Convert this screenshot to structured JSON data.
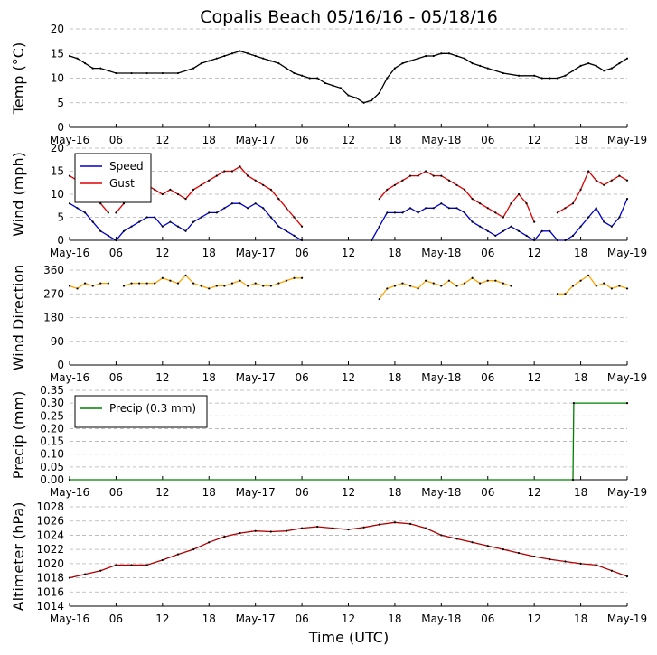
{
  "figure": {
    "title": "Copalis Beach 05/16/16 - 05/18/16",
    "xlabel": "Time (UTC)",
    "colors": {
      "temp": "#000000",
      "speed": "#0000cc",
      "gust": "#dd0000",
      "direction": "#ffa500",
      "precip": "#008000",
      "altimeter": "#b00000"
    }
  },
  "chart_data": [
    {
      "type": "line",
      "ylabel": "Temp (°C)",
      "ylim": [
        0,
        20
      ],
      "yticks": [
        0,
        5,
        10,
        15,
        20
      ],
      "xlim": [
        0,
        72
      ],
      "xtick_positions": [
        0,
        6,
        12,
        18,
        24,
        30,
        36,
        42,
        48,
        54,
        60,
        66,
        72
      ],
      "xtick_labels": [
        "May-16",
        "06",
        "12",
        "18",
        "May-17",
        "06",
        "12",
        "18",
        "May-18",
        "06",
        "12",
        "18",
        "May-19"
      ],
      "grid": true,
      "series": [
        {
          "values_x": [
            0,
            1,
            2,
            3,
            4,
            5,
            6,
            8,
            10,
            12,
            14,
            16,
            17,
            18,
            19,
            20,
            21,
            22,
            23,
            24,
            25,
            26,
            27,
            28,
            29,
            30,
            31,
            32,
            33,
            34,
            35,
            36,
            37,
            38,
            39,
            40,
            41,
            42,
            43,
            44,
            45,
            46,
            47,
            48,
            49,
            50,
            51,
            52,
            53,
            54,
            56,
            58,
            60,
            61,
            62,
            63,
            64,
            65,
            66,
            67,
            68,
            69,
            70,
            71,
            72
          ],
          "values": [
            14.5,
            14,
            13,
            12,
            12,
            11.5,
            11,
            11,
            11,
            11,
            11,
            12,
            13,
            13.5,
            14,
            14.5,
            15,
            15.5,
            15,
            14.5,
            14,
            13.5,
            13,
            12,
            11,
            10.5,
            10,
            10,
            9,
            8.5,
            8,
            6.5,
            6,
            5,
            5.5,
            7,
            10,
            12,
            13,
            13.5,
            14,
            14.5,
            14.5,
            15,
            15,
            14.5,
            14,
            13,
            12.5,
            12,
            11,
            10.5,
            10.5,
            10,
            10,
            10,
            10.5,
            11.5,
            12.5,
            13,
            12.5,
            11.5,
            12,
            13,
            14
          ]
        }
      ]
    },
    {
      "type": "line",
      "ylabel": "Wind (mph)",
      "ylim": [
        0,
        20
      ],
      "yticks": [
        0,
        5,
        10,
        15,
        20
      ],
      "xlim": [
        0,
        72
      ],
      "xtick_positions": [
        0,
        6,
        12,
        18,
        24,
        30,
        36,
        42,
        48,
        54,
        60,
        66,
        72
      ],
      "xtick_labels": [
        "May-16",
        "06",
        "12",
        "18",
        "May-17",
        "06",
        "12",
        "18",
        "May-18",
        "06",
        "12",
        "18",
        "May-19"
      ],
      "grid": true,
      "legend": "top-left",
      "series": [
        {
          "name": "Speed",
          "values_x": [
            0,
            1,
            2,
            3,
            4,
            5,
            6,
            7,
            8,
            9,
            10,
            11,
            12,
            13,
            14,
            15,
            16,
            17,
            18,
            19,
            20,
            21,
            22,
            23,
            24,
            25,
            26,
            27,
            28,
            29,
            30,
            null,
            39,
            40,
            41,
            42,
            43,
            44,
            45,
            46,
            47,
            48,
            49,
            50,
            51,
            52,
            53,
            54,
            55,
            56,
            57,
            58,
            59,
            60,
            61,
            62,
            63,
            64,
            65,
            66,
            67,
            68,
            69,
            70,
            71,
            72
          ],
          "values": [
            8,
            7,
            6,
            4,
            2,
            1,
            0,
            2,
            3,
            4,
            5,
            5,
            3,
            4,
            3,
            2,
            4,
            5,
            6,
            6,
            7,
            8,
            8,
            7,
            8,
            7,
            5,
            3,
            2,
            1,
            0,
            null,
            0,
            3,
            6,
            6,
            6,
            7,
            6,
            7,
            7,
            8,
            7,
            7,
            6,
            4,
            3,
            2,
            1,
            2,
            3,
            2,
            1,
            0,
            2,
            2,
            0,
            0,
            1,
            3,
            5,
            7,
            4,
            3,
            5,
            9
          ]
        },
        {
          "name": "Gust",
          "values_x": [
            0,
            1,
            2,
            3,
            4,
            5,
            null,
            6,
            7,
            8,
            9,
            10,
            11,
            12,
            13,
            14,
            15,
            16,
            17,
            18,
            19,
            20,
            21,
            22,
            23,
            24,
            25,
            26,
            27,
            28,
            29,
            30,
            null,
            40,
            41,
            42,
            43,
            44,
            45,
            46,
            47,
            48,
            49,
            50,
            51,
            52,
            53,
            54,
            55,
            56,
            57,
            58,
            59,
            60,
            null,
            63,
            64,
            65,
            66,
            67,
            68,
            69,
            70,
            71,
            72
          ],
          "values": [
            14,
            13,
            12,
            10,
            8,
            6,
            null,
            6,
            8,
            10,
            11,
            12,
            11,
            10,
            11,
            10,
            9,
            11,
            12,
            13,
            14,
            15,
            15,
            16,
            14,
            13,
            12,
            11,
            9,
            7,
            5,
            3,
            null,
            9,
            11,
            12,
            13,
            14,
            14,
            15,
            14,
            14,
            13,
            12,
            11,
            9,
            8,
            7,
            6,
            5,
            8,
            10,
            8,
            4,
            null,
            6,
            7,
            8,
            11,
            15,
            13,
            12,
            13,
            14,
            13
          ]
        }
      ]
    },
    {
      "type": "line",
      "ylabel": "Wind Direction",
      "ylim": [
        0,
        360
      ],
      "yticks": [
        0,
        90,
        180,
        270,
        360
      ],
      "xlim": [
        0,
        72
      ],
      "xtick_positions": [
        0,
        6,
        12,
        18,
        24,
        30,
        36,
        42,
        48,
        54,
        60,
        66,
        72
      ],
      "xtick_labels": [
        "May-16",
        "06",
        "12",
        "18",
        "May-17",
        "06",
        "12",
        "18",
        "May-18",
        "06",
        "12",
        "18",
        "May-19"
      ],
      "grid": true,
      "series": [
        {
          "values_x": [
            0,
            1,
            2,
            3,
            4,
            5,
            null,
            7,
            8,
            9,
            10,
            11,
            12,
            13,
            14,
            15,
            16,
            17,
            18,
            19,
            20,
            21,
            22,
            23,
            24,
            25,
            26,
            27,
            28,
            29,
            30,
            null,
            40,
            41,
            42,
            43,
            44,
            45,
            46,
            47,
            48,
            49,
            50,
            51,
            52,
            53,
            54,
            55,
            56,
            57,
            null,
            63,
            64,
            65,
            66,
            67,
            68,
            69,
            70,
            71,
            72
          ],
          "values": [
            300,
            290,
            310,
            300,
            310,
            310,
            null,
            300,
            310,
            310,
            310,
            310,
            330,
            320,
            310,
            340,
            310,
            300,
            290,
            300,
            300,
            310,
            320,
            300,
            310,
            300,
            300,
            310,
            320,
            330,
            330,
            null,
            250,
            290,
            300,
            310,
            300,
            290,
            320,
            310,
            300,
            320,
            300,
            310,
            330,
            310,
            320,
            320,
            310,
            300,
            null,
            270,
            270,
            300,
            320,
            340,
            300,
            310,
            290,
            300,
            290
          ]
        }
      ]
    },
    {
      "type": "line",
      "ylabel": "Precip (mm)",
      "ylim": [
        0,
        0.35
      ],
      "yticks": [
        0.0,
        0.05,
        0.1,
        0.15,
        0.2,
        0.25,
        0.3,
        0.35
      ],
      "xlim": [
        0,
        72
      ],
      "xtick_positions": [
        0,
        6,
        12,
        18,
        24,
        30,
        36,
        42,
        48,
        54,
        60,
        66,
        72
      ],
      "xtick_labels": [
        "May-16",
        "06",
        "12",
        "18",
        "May-17",
        "06",
        "12",
        "18",
        "May-18",
        "06",
        "12",
        "18",
        "May-19"
      ],
      "grid": true,
      "legend": "top-left",
      "series": [
        {
          "name": "Precip (0.3 mm)",
          "values_x": [
            0,
            65,
            65.1,
            72
          ],
          "values": [
            0,
            0,
            0.3,
            0.3
          ]
        }
      ]
    },
    {
      "type": "line",
      "ylabel": "Altimeter (hPa)",
      "ylim": [
        1014,
        1028
      ],
      "yticks": [
        1014,
        1016,
        1018,
        1020,
        1022,
        1024,
        1026,
        1028
      ],
      "xlim": [
        0,
        72
      ],
      "xtick_positions": [
        0,
        6,
        12,
        18,
        24,
        30,
        36,
        42,
        48,
        54,
        60,
        66,
        72
      ],
      "xtick_labels": [
        "May-16",
        "06",
        "12",
        "18",
        "May-17",
        "06",
        "12",
        "18",
        "May-18",
        "06",
        "12",
        "18",
        "May-19"
      ],
      "grid": true,
      "series": [
        {
          "values_x": [
            0,
            2,
            4,
            6,
            8,
            10,
            12,
            14,
            16,
            18,
            20,
            22,
            24,
            26,
            28,
            30,
            32,
            34,
            36,
            38,
            40,
            42,
            44,
            46,
            48,
            50,
            52,
            54,
            56,
            58,
            60,
            62,
            64,
            66,
            68,
            70,
            72
          ],
          "values": [
            1018,
            1018.5,
            1019,
            1019.8,
            1019.8,
            1019.8,
            1020.5,
            1021.3,
            1022,
            1023,
            1023.8,
            1024.3,
            1024.6,
            1024.5,
            1024.6,
            1025,
            1025.2,
            1025,
            1024.8,
            1025.1,
            1025.5,
            1025.8,
            1025.6,
            1025,
            1024,
            1023.5,
            1023,
            1022.5,
            1022,
            1021.5,
            1021,
            1020.6,
            1020.3,
            1020,
            1019.8,
            1019,
            1018.2
          ]
        }
      ]
    }
  ]
}
